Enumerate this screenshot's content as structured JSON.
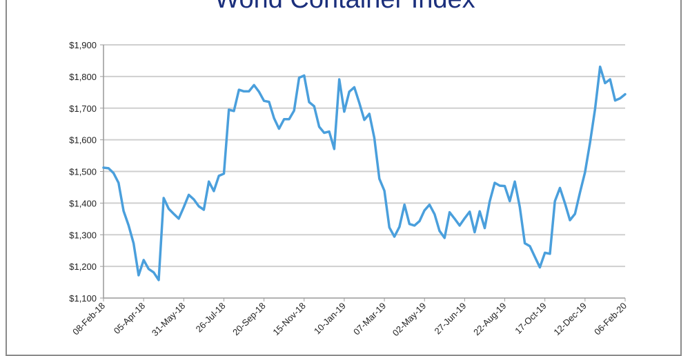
{
  "chart_data": {
    "type": "line",
    "title": "World Container Index",
    "xlabel": "",
    "ylabel": "",
    "ylim": [
      1100,
      1900
    ],
    "yticks": [
      1100,
      1200,
      1300,
      1400,
      1500,
      1600,
      1700,
      1800,
      1900
    ],
    "ytick_labels": [
      "$1,100",
      "$1,200",
      "$1,300",
      "$1,400",
      "$1,500",
      "$1,600",
      "$1,700",
      "$1,800",
      "$1,900"
    ],
    "xtick_labels": [
      "08-Feb-18",
      "05-Apr-18",
      "31-May-18",
      "26-Jul-18",
      "20-Sep-18",
      "15-Nov-18",
      "10-Jan-19",
      "07-Mar-19",
      "02-May-19",
      "27-Jun-19",
      "22-Aug-19",
      "17-Oct-19",
      "12-Dec-19",
      "06-Feb-20"
    ],
    "x_interval_weeks": 8,
    "grid": "horizontal",
    "line_color": "#4a9fdc",
    "series": [
      {
        "name": "World Container Index",
        "frequency": "weekly",
        "values": [
          1512,
          1510,
          1495,
          1464,
          1375,
          1330,
          1273,
          1172,
          1220,
          1192,
          1181,
          1157,
          1416,
          1382,
          1366,
          1351,
          1387,
          1426,
          1412,
          1390,
          1379,
          1468,
          1438,
          1486,
          1493,
          1695,
          1691,
          1758,
          1753,
          1753,
          1773,
          1752,
          1723,
          1720,
          1668,
          1635,
          1665,
          1665,
          1692,
          1796,
          1803,
          1719,
          1706,
          1641,
          1622,
          1626,
          1571,
          1791,
          1689,
          1752,
          1766,
          1717,
          1663,
          1682,
          1606,
          1477,
          1439,
          1323,
          1294,
          1325,
          1395,
          1334,
          1329,
          1343,
          1377,
          1395,
          1365,
          1312,
          1290,
          1371,
          1351,
          1329,
          1352,
          1373,
          1308,
          1374,
          1321,
          1405,
          1464,
          1455,
          1454,
          1406,
          1468,
          1388,
          1273,
          1264,
          1230,
          1197,
          1243,
          1240,
          1406,
          1448,
          1399,
          1346,
          1366,
          1434,
          1497,
          1591,
          1697,
          1831,
          1779,
          1791,
          1724,
          1731,
          1744
        ]
      }
    ]
  }
}
